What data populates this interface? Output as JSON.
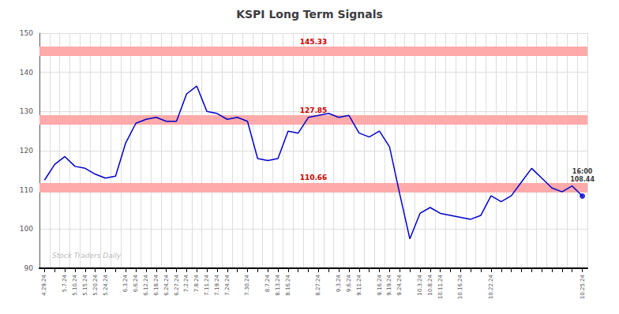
{
  "chart_data": {
    "type": "line",
    "title": "KSPI Long Term Signals",
    "categories": [
      "4.29.24",
      null,
      "5.7.24",
      "5.10.24",
      "5.15.24",
      "5.20.24",
      "5.24.24",
      null,
      "6.3.24",
      "6.6.24",
      "6.12.24",
      "6.18.24",
      "6.24.24",
      "6.27.24",
      "7.2.24",
      "7.8.24",
      "7.11.24",
      "7.19.24",
      "7.24.24",
      null,
      "7.30.24",
      null,
      "8.7.24",
      "8.13.24",
      "8.16.24",
      null,
      null,
      "8.27.24",
      null,
      "9.3.24",
      "9.6.24",
      "9.11.24",
      null,
      "9.16.24",
      "9.19.24",
      "9.24.24",
      null,
      "10.3.24",
      "10.8.24",
      "10.11.24",
      null,
      "10.16.24",
      null,
      null,
      "10.22.24",
      null,
      null,
      null,
      null,
      null,
      null,
      null,
      null,
      "10.25.24"
    ],
    "values": [
      112.5,
      116.5,
      118.5,
      116.0,
      115.5,
      114.0,
      113.0,
      113.5,
      122.0,
      127.0,
      128.0,
      128.5,
      127.5,
      127.5,
      134.5,
      136.5,
      130.0,
      129.5,
      128.0,
      128.5,
      127.5,
      118.0,
      117.5,
      118.0,
      125.0,
      124.5,
      128.5,
      129.0,
      129.5,
      128.5,
      129.0,
      124.5,
      123.5,
      125.0,
      121.0,
      109.0,
      97.5,
      104.0,
      105.5,
      104.0,
      103.5,
      103.0,
      102.5,
      103.5,
      108.5,
      107.0,
      108.5,
      112.0,
      115.5,
      113.0,
      110.5,
      109.5,
      111.0,
      108.44
    ],
    "color": "#0000cc",
    "ylim": [
      90,
      150
    ],
    "yticks": [
      90,
      100,
      110,
      120,
      130,
      140,
      150
    ],
    "grid": true,
    "hlines": [
      {
        "value": 145.33,
        "color": "#ffaaaa",
        "label_color": "#cc0000"
      },
      {
        "value": 127.85,
        "color": "#ffaaaa",
        "label_color": "#cc0000"
      },
      {
        "value": 110.66,
        "color": "#ffaaaa",
        "label_color": "#cc0000"
      }
    ],
    "annotations": [
      {
        "text": "16:00\n108.44",
        "category": "10.25.24",
        "value": 108.44
      }
    ],
    "watermark": "Stock Traders Daily"
  }
}
